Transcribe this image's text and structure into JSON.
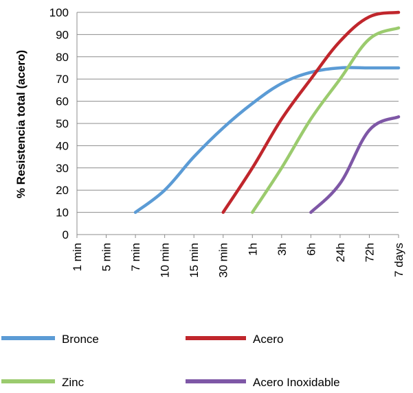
{
  "chart_data": {
    "type": "line",
    "categories": [
      "1 min",
      "5 min",
      "7 min",
      "10 min",
      "15 min",
      "30 min",
      "1h",
      "3h",
      "6h",
      "24h",
      "72h",
      "7 days"
    ],
    "ylabel": "% Resistencia total (acero)",
    "xlabel": "",
    "ylim": [
      0,
      100
    ],
    "yticks": [
      0,
      10,
      20,
      30,
      40,
      50,
      60,
      70,
      80,
      90,
      100
    ],
    "grid": "horizontal",
    "legend_position": "bottom",
    "series": [
      {
        "name": "Bronce",
        "color": "#5B9BD5",
        "values": [
          null,
          null,
          10,
          20,
          35,
          48,
          59,
          68,
          73,
          75,
          75,
          75
        ]
      },
      {
        "name": "Acero",
        "color": "#C0262C",
        "values": [
          null,
          null,
          null,
          null,
          null,
          10,
          30,
          52,
          70,
          87,
          98,
          100
        ]
      },
      {
        "name": "Zinc",
        "color": "#9BCB6E",
        "values": [
          null,
          null,
          null,
          null,
          null,
          null,
          10,
          30,
          52,
          70,
          88,
          93
        ]
      },
      {
        "name": "Acero Inoxidable",
        "color": "#7E57A6",
        "values": [
          null,
          null,
          null,
          null,
          null,
          null,
          null,
          null,
          10,
          23,
          47,
          53
        ]
      }
    ]
  }
}
